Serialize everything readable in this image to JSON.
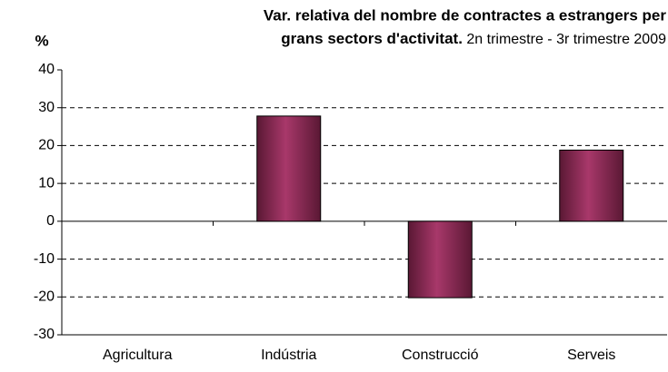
{
  "chart_data": {
    "type": "bar",
    "title": [
      "Var. relativa del nombre de contractes a estrangers per",
      "grans sectors d'activitat."
    ],
    "subtitle": "2n trimestre - 3r trimestre 2009",
    "y_label": "%",
    "categories": [
      "Agricultura",
      "Indústria",
      "Construcció",
      "Serveis"
    ],
    "values": [
      0,
      27.8,
      -20.2,
      18.8
    ],
    "color": "#993366",
    "ylim": [
      -30,
      40
    ],
    "yticks": [
      -30,
      -20,
      -10,
      0,
      10,
      20,
      30,
      40
    ],
    "grid": true
  }
}
